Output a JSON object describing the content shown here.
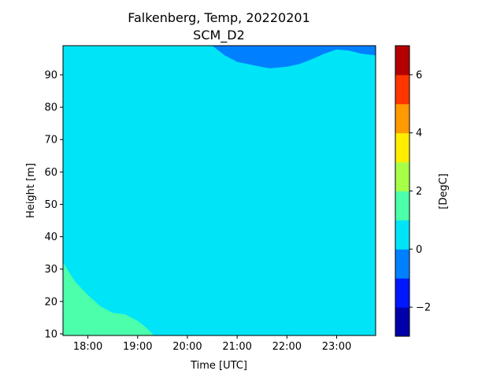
{
  "chart_data": {
    "type": "heatmap",
    "title_line1": "Falkenberg, Temp, 20220201",
    "title_line2": "SCM_D2",
    "xlabel": "Time [UTC]",
    "ylabel": "Height [m]",
    "colorbar_label": "[DegC]",
    "x_ticks": [
      "18:00",
      "19:00",
      "20:00",
      "21:00",
      "22:00",
      "23:00"
    ],
    "x_range": [
      "17:30",
      "23:47"
    ],
    "y_ticks": [
      10,
      20,
      30,
      40,
      50,
      60,
      70,
      80,
      90
    ],
    "y_range": [
      9.5,
      99
    ],
    "colorbar": {
      "min": -3,
      "max": 7,
      "step": 1,
      "ticks": [
        -2,
        0,
        2,
        4,
        6
      ],
      "tick_labels": [
        "−2",
        "0",
        "2",
        "4",
        "6"
      ],
      "colors": [
        "#0000aa",
        "#0018ff",
        "#0080ff",
        "#00e4f8",
        "#4cffaa",
        "#a8ff48",
        "#ffee00",
        "#ff9a00",
        "#ff3600",
        "#b40000"
      ]
    },
    "regions": [
      {
        "name": "temp-0-to-1",
        "range_degc": [
          0,
          1
        ],
        "color": "#00e4f8",
        "note": "background field"
      },
      {
        "name": "temp-minus1-to-0",
        "range_degc": [
          -1,
          0
        ],
        "color": "#0080ff",
        "boundary": [
          [
            "20:30",
            99
          ],
          [
            "20:45",
            96
          ],
          [
            "21:00",
            94
          ],
          [
            "21:15",
            93.2
          ],
          [
            "21:30",
            92.4
          ],
          [
            "21:40",
            92
          ],
          [
            "22:00",
            92.5
          ],
          [
            "22:15",
            93.3
          ],
          [
            "22:30",
            94.8
          ],
          [
            "22:45",
            96.5
          ],
          [
            "23:00",
            97.8
          ],
          [
            "23:15",
            97.5
          ],
          [
            "23:30",
            96.5
          ],
          [
            "23:47",
            96
          ]
        ]
      },
      {
        "name": "temp-1-to-2",
        "range_degc": [
          1,
          2
        ],
        "color": "#4cffaa",
        "boundary": [
          [
            "17:30",
            32
          ],
          [
            "17:45",
            26
          ],
          [
            "18:00",
            22
          ],
          [
            "18:15",
            18.5
          ],
          [
            "18:30",
            16.5
          ],
          [
            "18:45",
            16
          ],
          [
            "19:00",
            14
          ],
          [
            "19:10",
            12
          ],
          [
            "19:18",
            10
          ]
        ]
      }
    ]
  }
}
